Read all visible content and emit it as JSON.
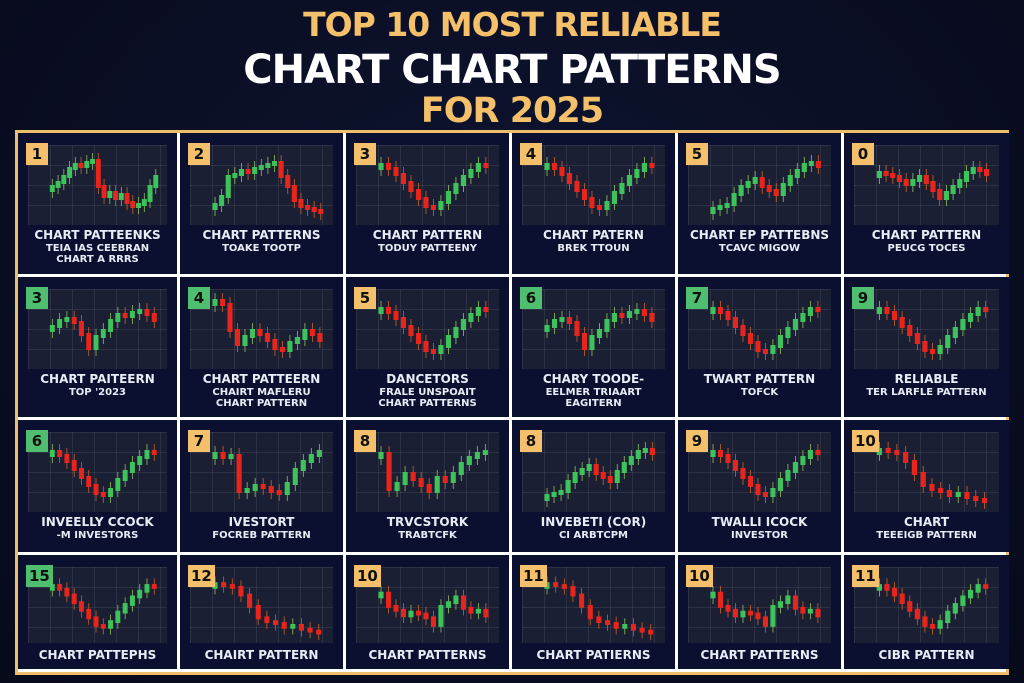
{
  "title": {
    "line1": "TOP 10 MOST RELIABLE",
    "line2": "CHART CHART PATTERNS",
    "line3": "FOR 2025"
  },
  "colors": {
    "background": "#0a0e24",
    "gold": "#f4c16a",
    "frame": "#f0bd6a",
    "separator": "#ffffff",
    "cell": "#0b1030",
    "chart_bg": "#1a1f33",
    "bull": "#3ec25c",
    "bear": "#e8251c"
  },
  "cards": [
    {
      "badge": "1",
      "badge_color": "gold",
      "lines": [
        "CHART PATTEENKS",
        "TEIA IAS CEEBRAN",
        "CHART A RRRS"
      ],
      "trend": "up-down-down"
    },
    {
      "badge": "2",
      "badge_color": "gold",
      "lines": [
        "CHART PATTERNS",
        "TOAKE TOOTP"
      ],
      "trend": "up-then-drop"
    },
    {
      "badge": "3",
      "badge_color": "gold",
      "lines": [
        "CHART PATTERN",
        "TODUY PATTEENY"
      ],
      "trend": "v"
    },
    {
      "badge": "4",
      "badge_color": "gold",
      "lines": [
        "CHART PATERN",
        "BREK TTOUN"
      ],
      "trend": "v"
    },
    {
      "badge": "5",
      "badge_color": "gold",
      "lines": [
        "CHART EP PATTEBNS",
        "TCAVC MIGOW"
      ],
      "trend": "up"
    },
    {
      "badge": "0",
      "badge_color": "gold",
      "lines": [
        "CHART PATTERN",
        "PEUCG TOCES"
      ],
      "trend": "flat-dip-up"
    },
    {
      "badge": "3",
      "badge_color": "green",
      "lines": [
        "CHART PAITEERN",
        "TOP '2023"
      ],
      "trend": "dip-up"
    },
    {
      "badge": "4",
      "badge_color": "green",
      "lines": [
        "CHART PATTEERN",
        "CHAIRT MAFLERU",
        "CHART PATTERN"
      ],
      "trend": "down-up"
    },
    {
      "badge": "5",
      "badge_color": "gold",
      "lines": [
        "DANCETORS",
        "FRALE UNSPOAIT",
        "CHART PATTERNS"
      ],
      "trend": "v"
    },
    {
      "badge": "6",
      "badge_color": "green",
      "lines": [
        "CHARY TOODE-",
        "EELMER TRIAART",
        "EAGITERN"
      ],
      "trend": "dip-up"
    },
    {
      "badge": "7",
      "badge_color": "green",
      "lines": [
        "TWART PATTERN",
        "TOFCK"
      ],
      "trend": "v"
    },
    {
      "badge": "9",
      "badge_color": "green",
      "lines": [
        "RELIABLE",
        "TER LARFLE PATTERN"
      ],
      "trend": "v"
    },
    {
      "badge": "6",
      "badge_color": "green",
      "lines": [
        "INVEELLY CCOCK",
        "-M INVESTORS"
      ],
      "trend": "v"
    },
    {
      "badge": "7",
      "badge_color": "gold",
      "lines": [
        "IVESTORT",
        "FOCREB PATTERN"
      ],
      "trend": "drop-up"
    },
    {
      "badge": "8",
      "badge_color": "gold",
      "lines": [
        "TRVCSTORK",
        "TRABTCFK"
      ],
      "trend": "choppy-up"
    },
    {
      "badge": "8",
      "badge_color": "gold",
      "lines": [
        "INVEBETI (COR)",
        "CI ARBTCPM"
      ],
      "trend": "up"
    },
    {
      "badge": "9",
      "badge_color": "gold",
      "lines": [
        "TWALLI ICOCK",
        "INVESTOR"
      ],
      "trend": "v"
    },
    {
      "badge": "10",
      "badge_color": "gold",
      "lines": [
        "CHART",
        "TEEEIGB PATTERN"
      ],
      "trend": "down"
    },
    {
      "badge": "15",
      "badge_color": "green",
      "lines": [
        "CHART PATTEPHS"
      ],
      "trend": "v"
    },
    {
      "badge": "12",
      "badge_color": "gold",
      "lines": [
        "CHAIRT PATTERN"
      ],
      "trend": "down"
    },
    {
      "badge": "10",
      "badge_color": "gold",
      "lines": [
        "CHART PATTERNS"
      ],
      "trend": "choppy"
    },
    {
      "badge": "11",
      "badge_color": "gold",
      "lines": [
        "CHART PATIERNS"
      ],
      "trend": "down"
    },
    {
      "badge": "10",
      "badge_color": "gold",
      "lines": [
        "CHART PATTERNS"
      ],
      "trend": "choppy"
    },
    {
      "badge": "11",
      "badge_color": "gold",
      "lines": [
        "CIBR PATTERN"
      ],
      "trend": "v"
    }
  ]
}
